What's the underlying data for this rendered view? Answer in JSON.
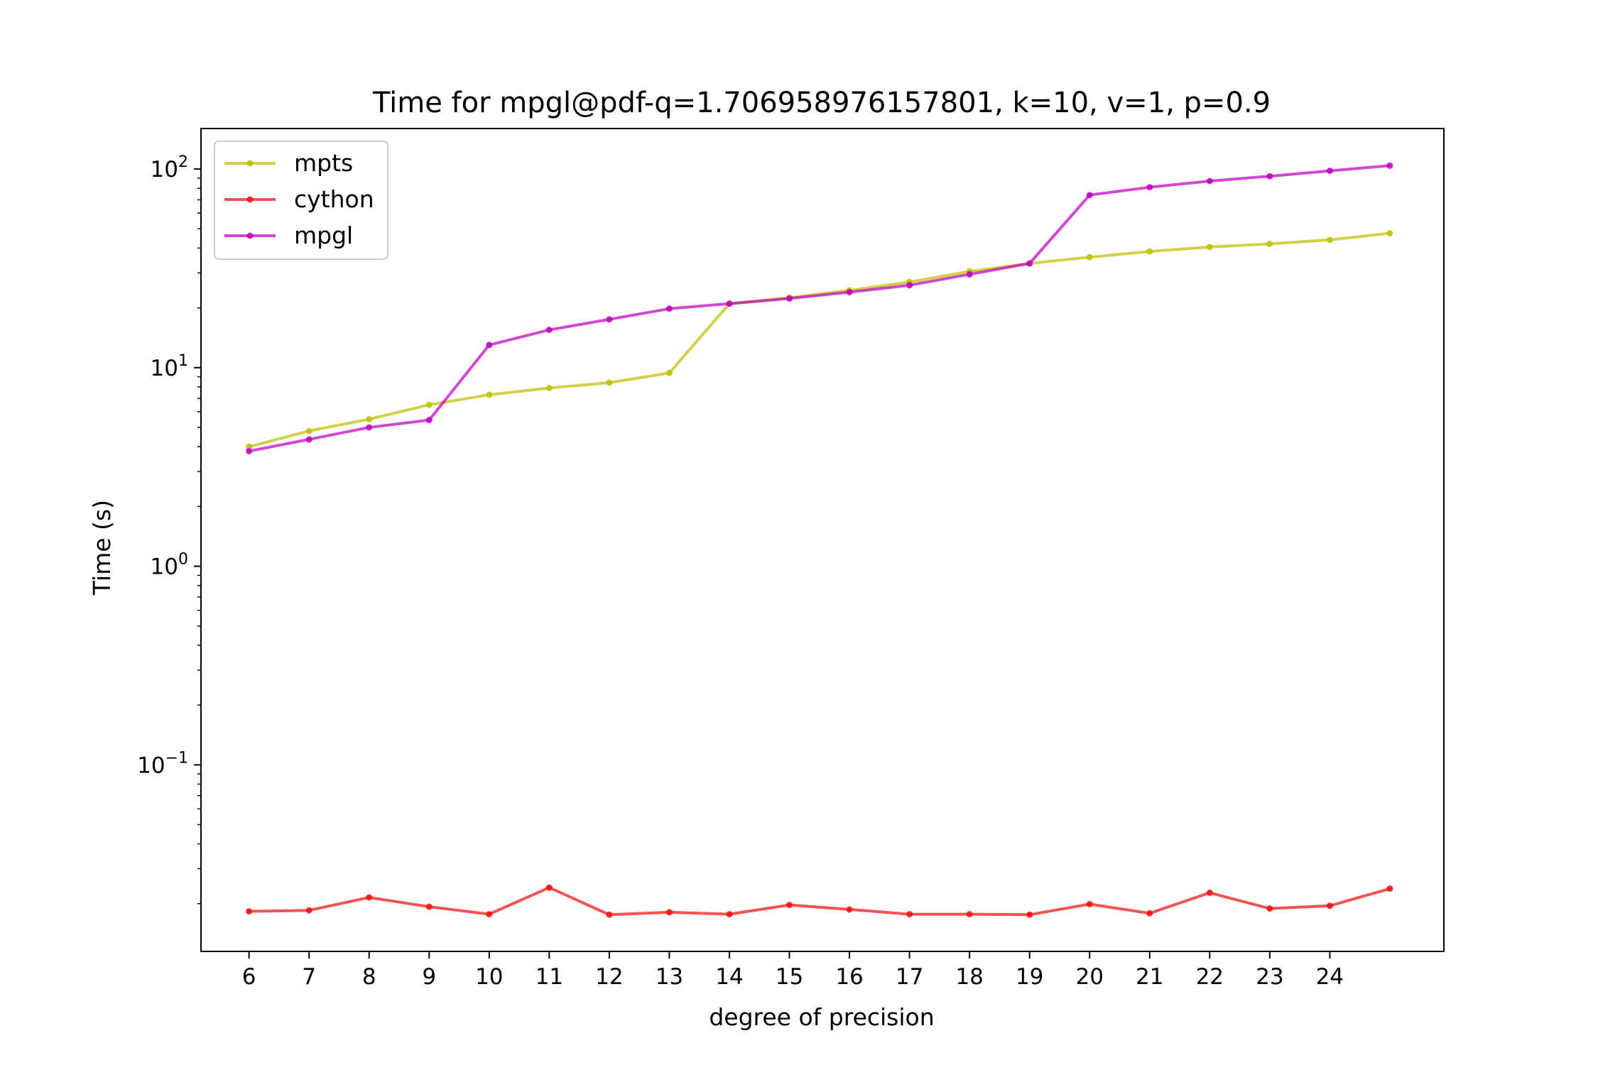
{
  "chart_data": {
    "type": "line",
    "title": "Time for mpgl@pdf-q=1.706958976157801, k=10, v=1, p=0.9",
    "xlabel": "degree of precision",
    "ylabel": "Time (s)",
    "yscale": "log",
    "ylim": [
      0.0115,
      160
    ],
    "xlim": [
      5.2,
      25.9
    ],
    "x_ticks": [
      6,
      7,
      8,
      9,
      10,
      11,
      12,
      13,
      14,
      15,
      16,
      17,
      18,
      19,
      20,
      21,
      22,
      23,
      24
    ],
    "y_ticks": [
      {
        "value": 100,
        "base": "10",
        "exp": "2"
      },
      {
        "value": 10,
        "base": "10",
        "exp": "1"
      },
      {
        "value": 1,
        "base": "10",
        "exp": "0"
      },
      {
        "value": 0.1,
        "base": "10",
        "exp": "−1"
      }
    ],
    "x": [
      6,
      7,
      8,
      9,
      10,
      11,
      12,
      13,
      14,
      15,
      16,
      17,
      18,
      19,
      20,
      21,
      22,
      23,
      24,
      25
    ],
    "series": [
      {
        "name": "mpts",
        "color": "#bfbf00",
        "values": [
          4.0,
          4.8,
          5.5,
          6.5,
          7.3,
          7.9,
          8.4,
          9.4,
          21.0,
          22.5,
          24.5,
          27.0,
          30.5,
          33.5,
          36.0,
          38.5,
          40.5,
          42.0,
          44.0,
          47.5
        ]
      },
      {
        "name": "cython",
        "color": "#ee1111",
        "values": [
          0.0183,
          0.0185,
          0.0215,
          0.0193,
          0.0177,
          0.0241,
          0.0176,
          0.0181,
          0.0177,
          0.0197,
          0.0187,
          0.0177,
          0.0177,
          0.0176,
          0.0199,
          0.0179,
          0.0227,
          0.0189,
          0.0195,
          0.0238
        ]
      },
      {
        "name": "mpgl",
        "color": "#bf00bf",
        "values": [
          3.8,
          4.35,
          5.0,
          5.45,
          13.0,
          15.5,
          17.5,
          19.8,
          21.0,
          22.3,
          24.0,
          26.0,
          29.5,
          33.5,
          74.0,
          81.0,
          87.0,
          92.0,
          98.0,
          104.0
        ]
      }
    ],
    "grid": false,
    "legend_position": "upper-left"
  }
}
